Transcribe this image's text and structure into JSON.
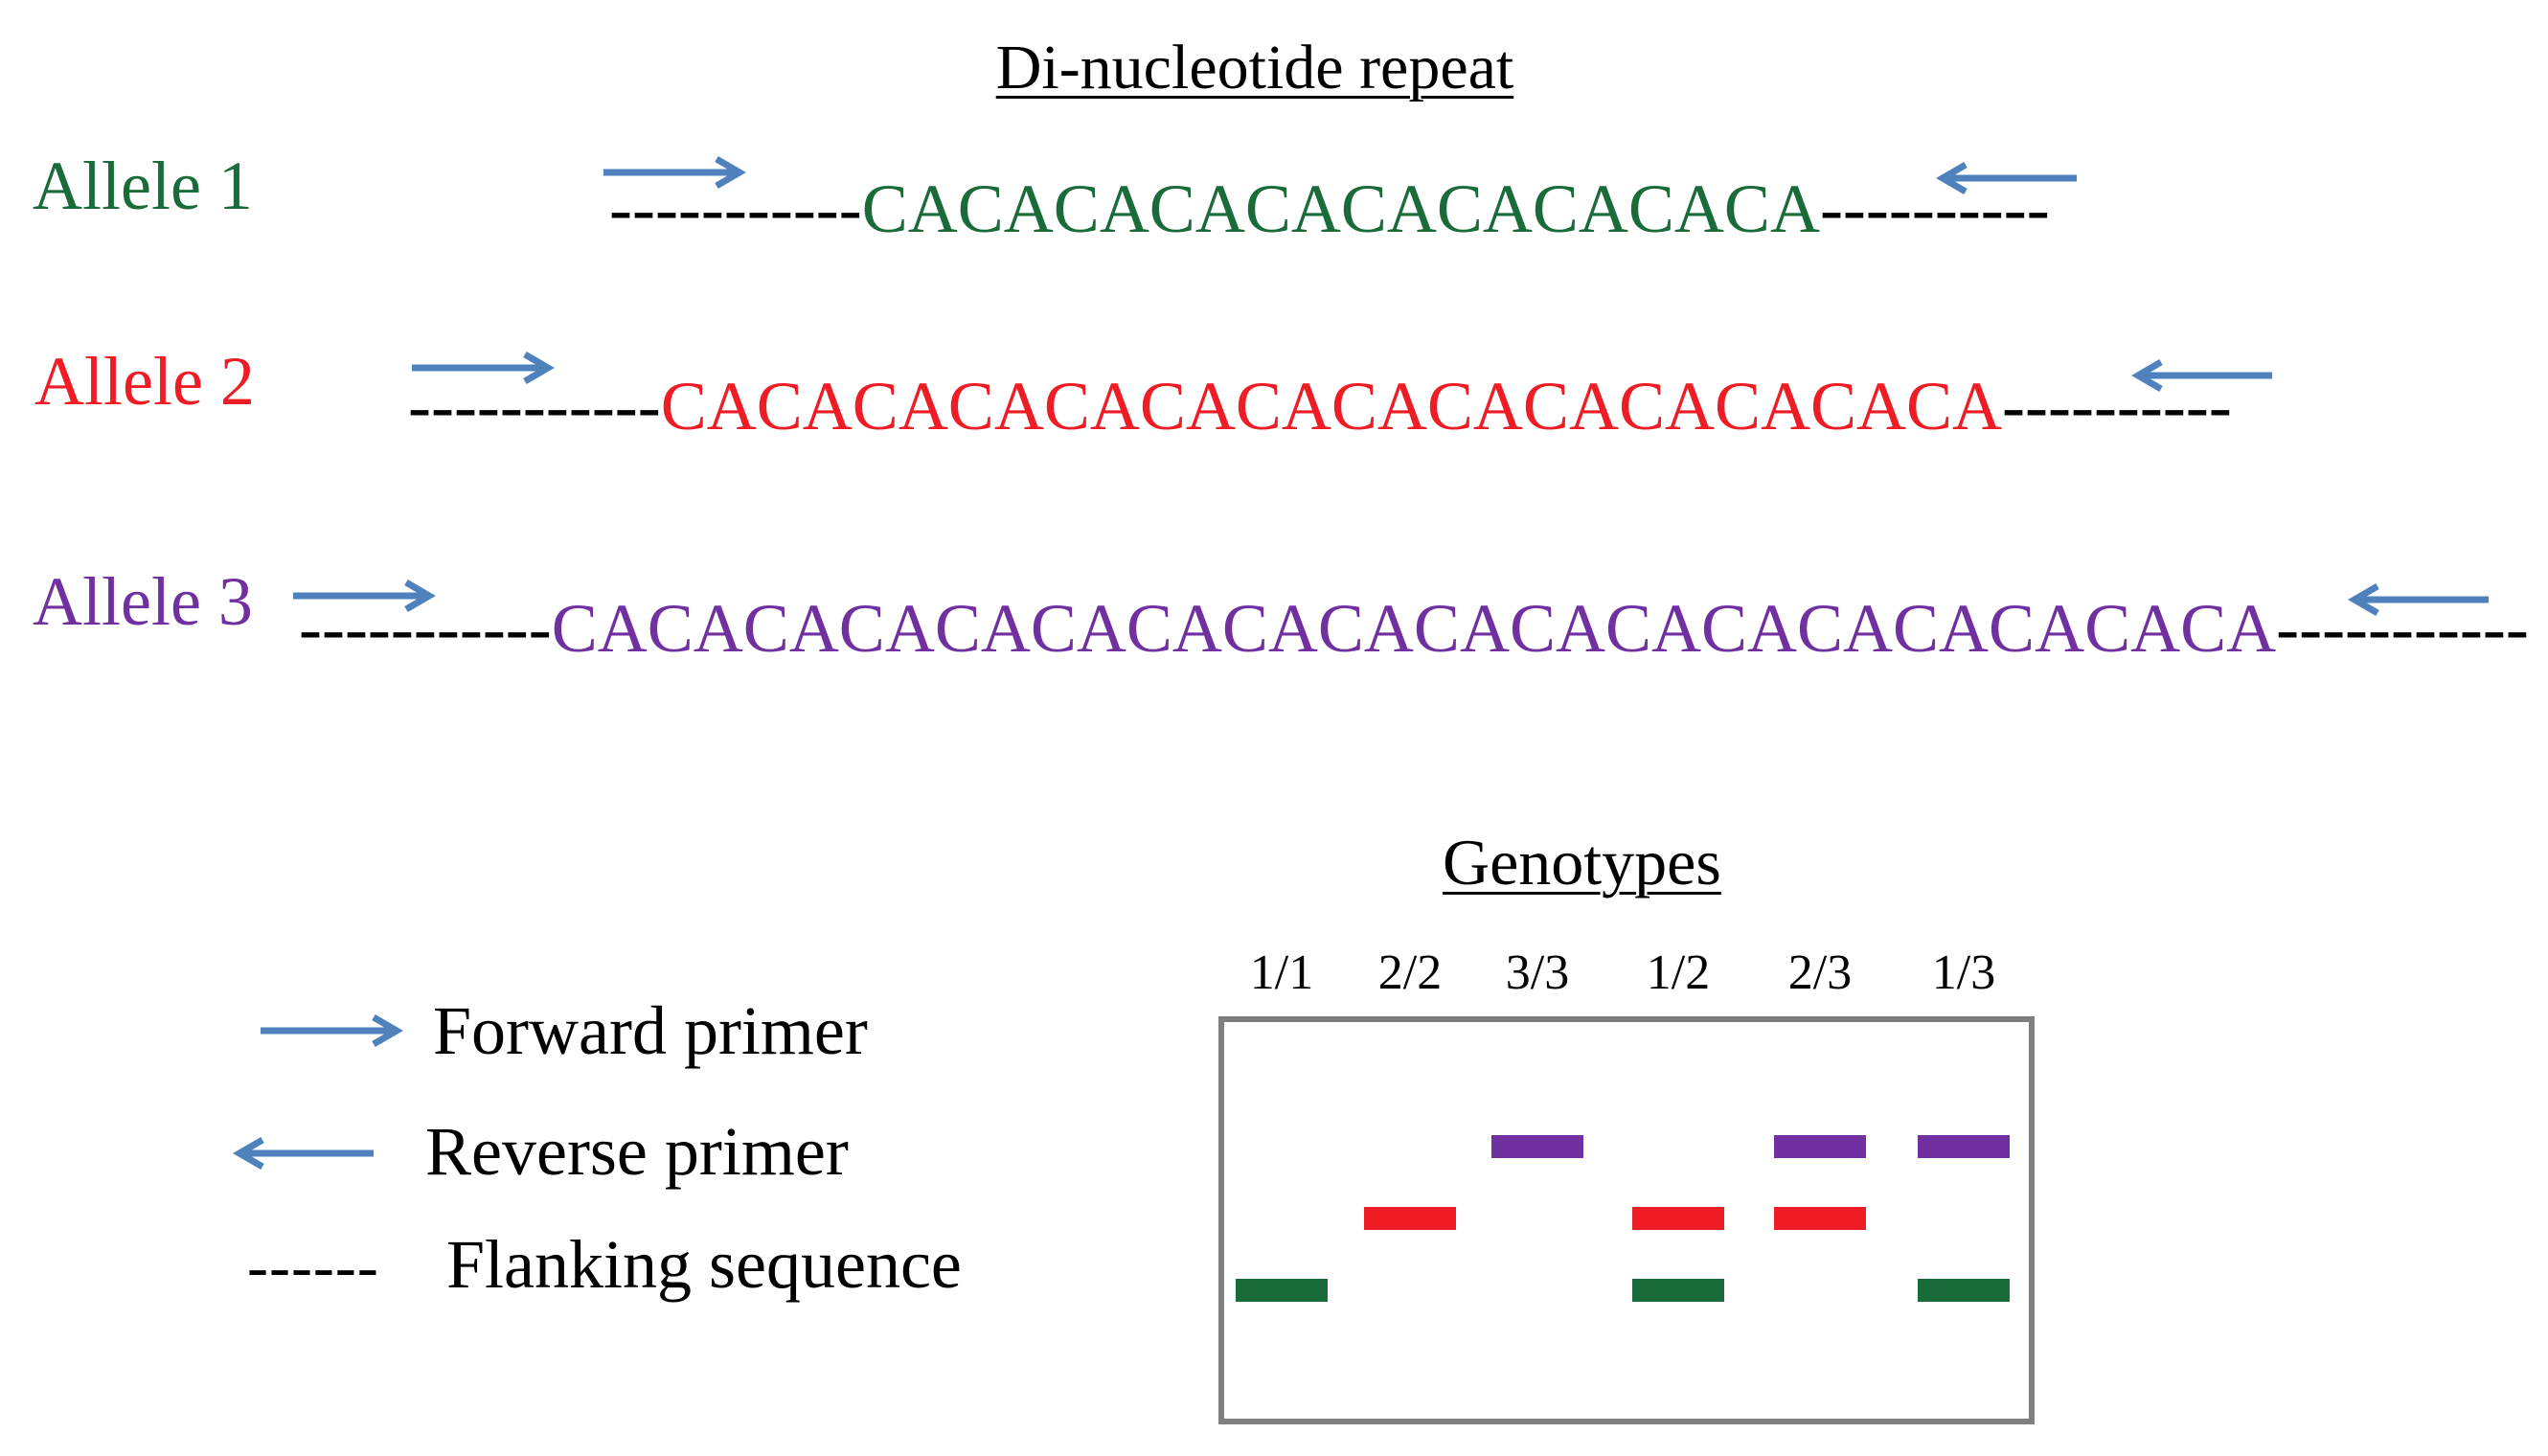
{
  "title": "Di-nucleotide repeat",
  "colors": {
    "allele1": "#1a6b3a",
    "allele2": "#ee1c24",
    "allele3": "#7030a0",
    "arrow": "#4f81bd",
    "gel_border": "#7f7f7f"
  },
  "alleles": [
    {
      "label": "Allele 1",
      "flank_left": "-----------",
      "repeat": "CACACACACACACACACACA",
      "flank_right": "----------"
    },
    {
      "label": "Allele 2",
      "flank_left": "-----------",
      "repeat": "CACACACACACACACACACACACACACA",
      "flank_right": "----------"
    },
    {
      "label": "Allele 3",
      "flank_left": "-----------",
      "repeat": "CACACACACACACACACACACACACACACACACACA",
      "flank_right": "-----------"
    }
  ],
  "genotypes": {
    "title": "Genotypes",
    "lanes": [
      "1/1",
      "2/2",
      "3/3",
      "1/2",
      "2/3",
      "1/3"
    ],
    "bands": [
      {
        "lane": "1/1",
        "alleles": [
          1
        ]
      },
      {
        "lane": "2/2",
        "alleles": [
          2
        ]
      },
      {
        "lane": "3/3",
        "alleles": [
          3
        ]
      },
      {
        "lane": "1/2",
        "alleles": [
          1,
          2
        ]
      },
      {
        "lane": "2/3",
        "alleles": [
          2,
          3
        ]
      },
      {
        "lane": "1/3",
        "alleles": [
          1,
          3
        ]
      }
    ]
  },
  "legend": {
    "forward_label": "Forward primer",
    "reverse_label": "Reverse primer",
    "flanking_symbol": "------",
    "flanking_label": "Flanking sequence"
  }
}
